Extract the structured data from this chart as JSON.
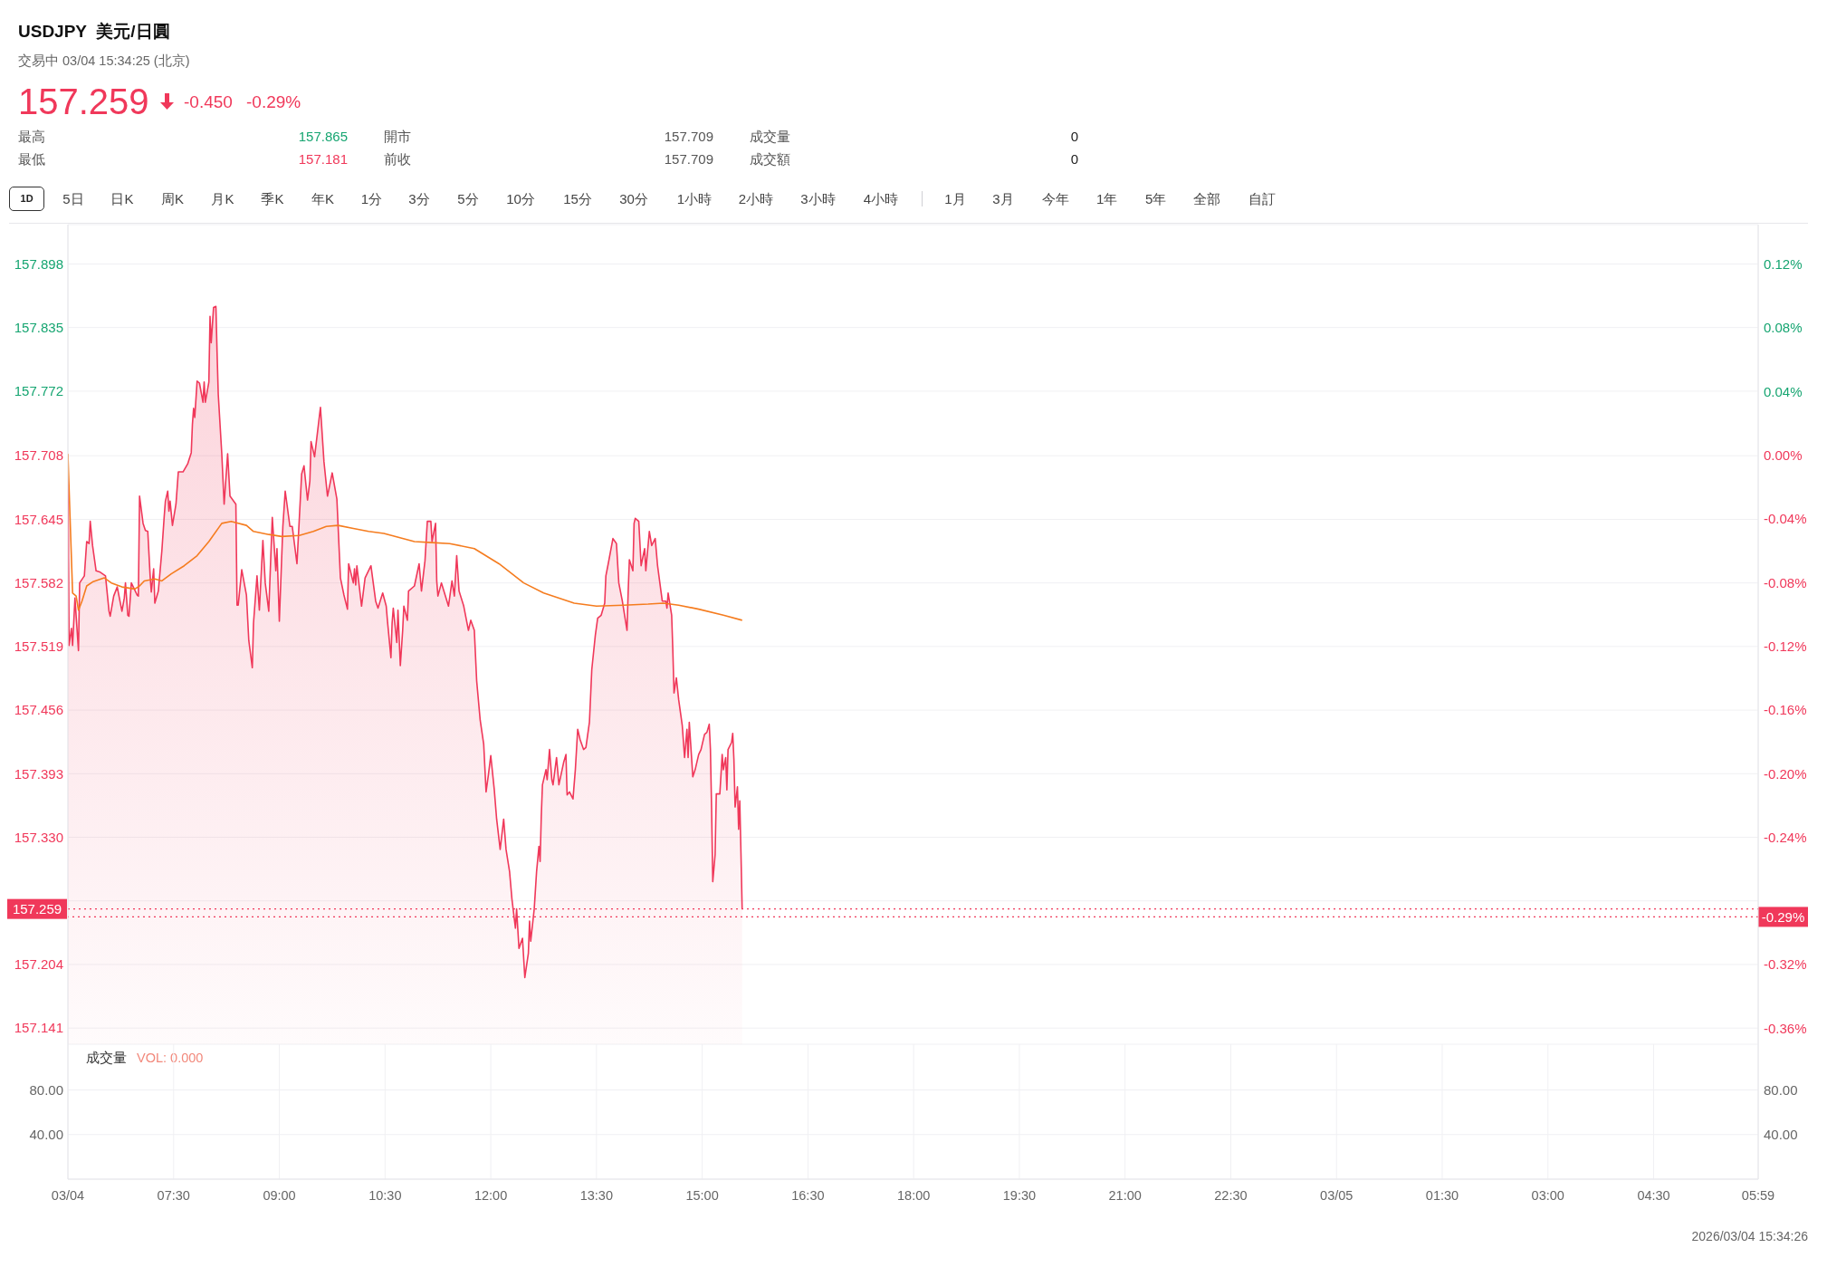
{
  "chart_data": [
    {
      "type": "area",
      "title": "USDJPY  美元/日圓",
      "subtitle": "交易中 03/04 15:34:25 (北京)",
      "annotations": [
        "157.259",
        "-0.450",
        "-0.29%",
        "最高",
        "157.865",
        "開市",
        "157.709",
        "成交量",
        "0",
        "最低",
        "157.181",
        "前收",
        "157.709",
        "成交額",
        "0",
        "1D",
        "5日",
        "日K",
        "周K",
        "月K",
        "季K",
        "年K",
        "1分",
        "3分",
        "5分",
        "10分",
        "15分",
        "30分",
        "1小時",
        "2小時",
        "3小時",
        "4小時",
        "1月",
        "3月",
        "今年",
        "1年",
        "5年",
        "全部",
        "自訂"
      ],
      "xlim": [
        "2026-03-04T06:00",
        "2026-03-05T05:59"
      ],
      "xticks": [
        {
          "value": "2026-03-04T06:00",
          "label": null
        },
        {
          "value": "2026-03-04T07:30",
          "label": null
        },
        {
          "value": "2026-03-04T09:00",
          "label": null
        },
        {
          "value": "2026-03-04T10:30",
          "label": null
        },
        {
          "value": "2026-03-04T12:00",
          "label": null
        },
        {
          "value": "2026-03-04T13:30",
          "label": null
        },
        {
          "value": "2026-03-04T15:00",
          "label": null
        },
        {
          "value": "2026-03-04T16:30",
          "label": null
        },
        {
          "value": "2026-03-04T18:00",
          "label": null
        },
        {
          "value": "2026-03-04T19:30",
          "label": null
        },
        {
          "value": "2026-03-04T21:00",
          "label": null
        },
        {
          "value": "2026-03-04T22:30",
          "label": null
        },
        {
          "value": "2026-03-05T00:00",
          "label": null
        },
        {
          "value": "2026-03-05T01:30",
          "label": null
        },
        {
          "value": "2026-03-05T03:00",
          "label": null
        },
        {
          "value": "2026-03-05T04:30",
          "label": null
        },
        {
          "value": "2026-03-05T05:59",
          "label": null
        }
      ],
      "ylim": [
        157.125,
        157.937
      ],
      "yticks": [
        {
          "value": 157.898,
          "label": "157.898"
        },
        {
          "value": 157.835,
          "label": "157.835"
        },
        {
          "value": 157.772,
          "label": "157.772"
        },
        {
          "value": 157.708,
          "label": "157.708"
        },
        {
          "value": 157.645,
          "label": "157.645"
        },
        {
          "value": 157.582,
          "label": "157.582"
        },
        {
          "value": 157.519,
          "label": "157.519"
        },
        {
          "value": 157.456,
          "label": "157.456"
        },
        {
          "value": 157.393,
          "label": "157.393"
        },
        {
          "value": 157.33,
          "label": "157.330"
        },
        {
          "value": 157.267,
          "label": null
        },
        {
          "value": 157.204,
          "label": "157.204"
        },
        {
          "value": 157.141,
          "label": "157.141"
        }
      ],
      "y2lim": [
        -0.37,
        0.145
      ],
      "y2ticks": [
        {
          "value": 0.12,
          "label": "0.12%"
        },
        {
          "value": 0.08,
          "label": "0.08%"
        },
        {
          "value": 0.04,
          "label": "0.04%"
        },
        {
          "value": 0,
          "label": "0.00%"
        },
        {
          "value": -0.04,
          "label": "-0.04%"
        },
        {
          "value": -0.08,
          "label": "-0.08%"
        },
        {
          "value": -0.12,
          "label": "-0.12%"
        },
        {
          "value": -0.16,
          "label": "-0.16%"
        },
        {
          "value": -0.2,
          "label": "-0.20%"
        },
        {
          "value": -0.24,
          "label": "-0.24%"
        },
        {
          "value": -0.28,
          "label": null
        },
        {
          "value": -0.32,
          "label": "-0.32%"
        },
        {
          "value": -0.36,
          "label": "-0.36%"
        }
      ],
      "tick_labels": "y",
      "grid": true,
      "ref_lines": [
        {
          "axis": "y",
          "value": 157.259,
          "label": "157.259",
          "color": "#f0385a",
          "line_style": "dotted"
        },
        {
          "axis": "y2",
          "value": -0.29,
          "label": "-0.29%",
          "color": "#f0385a",
          "line_style": "dotted"
        }
      ],
      "series": [
        {
          "color": "#f0385a",
          "x": [
            "2026-03-04T06:00",
            "2026-03-04T06:01",
            "2026-03-04T06:03",
            "2026-03-04T06:04",
            "2026-03-04T06:06",
            "2026-03-04T06:09",
            "2026-03-04T06:10",
            "2026-03-04T06:14",
            "2026-03-04T06:16",
            "2026-03-04T06:18",
            "2026-03-04T06:19",
            "2026-03-04T06:21",
            "2026-03-04T06:24",
            "2026-03-04T06:27",
            "2026-03-04T06:32",
            "2026-03-04T06:35",
            "2026-03-04T06:36",
            "2026-03-04T06:39",
            "2026-03-04T06:42",
            "2026-03-04T06:46",
            "2026-03-04T06:48",
            "2026-03-04T06:49",
            "2026-03-04T06:51",
            "2026-03-04T06:52",
            "2026-03-04T06:54",
            "2026-03-04T06:59",
            "2026-03-04T07:00",
            "2026-03-04T07:01",
            "2026-03-04T07:04",
            "2026-03-04T07:06",
            "2026-03-04T07:08",
            "2026-03-04T07:10",
            "2026-03-04T07:11",
            "2026-03-04T07:13",
            "2026-03-04T07:14",
            "2026-03-04T07:17",
            "2026-03-04T07:20",
            "2026-03-04T07:22",
            "2026-03-04T07:23",
            "2026-03-04T07:25",
            "2026-03-04T07:26",
            "2026-03-04T07:27",
            "2026-03-04T07:29",
            "2026-03-04T07:32",
            "2026-03-04T07:34",
            "2026-03-04T07:38",
            "2026-03-04T07:42",
            "2026-03-04T07:45",
            "2026-03-04T07:46",
            "2026-03-04T07:47",
            "2026-03-04T07:48",
            "2026-03-04T07:50",
            "2026-03-04T07:52",
            "2026-03-04T07:55",
            "2026-03-04T07:56",
            "2026-03-04T07:57",
            "2026-03-04T08:00",
            "2026-03-04T08:01",
            "2026-03-04T08:02",
            "2026-03-04T08:04",
            "2026-03-04T08:06",
            "2026-03-04T08:07",
            "2026-03-04T08:08",
            "2026-03-04T08:11",
            "2026-03-04T08:13",
            "2026-03-04T08:16",
            "2026-03-04T08:18",
            "2026-03-04T08:23",
            "2026-03-04T08:24",
            "2026-03-04T08:25",
            "2026-03-04T08:28",
            "2026-03-04T08:32",
            "2026-03-04T08:34",
            "2026-03-04T08:37",
            "2026-03-04T08:38",
            "2026-03-04T08:41",
            "2026-03-04T08:43",
            "2026-03-04T08:46",
            "2026-03-04T08:48",
            "2026-03-04T08:51",
            "2026-03-04T08:54",
            "2026-03-04T08:57",
            "2026-03-04T08:58",
            "2026-03-04T09:00",
            "2026-03-04T09:03",
            "2026-03-04T09:05",
            "2026-03-04T09:09",
            "2026-03-04T09:11",
            "2026-03-04T09:15",
            "2026-03-04T09:19",
            "2026-03-04T09:21",
            "2026-03-04T09:24",
            "2026-03-04T09:26",
            "2026-03-04T09:27",
            "2026-03-04T09:30",
            "2026-03-04T09:35",
            "2026-03-04T09:38",
            "2026-03-04T09:41",
            "2026-03-04T09:45",
            "2026-03-04T09:49",
            "2026-03-04T09:52",
            "2026-03-04T09:55",
            "2026-03-04T09:58",
            "2026-03-04T09:59",
            "2026-03-04T10:03",
            "2026-03-04T10:04",
            "2026-03-04T10:05",
            "2026-03-04T10:06",
            "2026-03-04T10:10",
            "2026-03-04T10:13",
            "2026-03-04T10:18",
            "2026-03-04T10:22",
            "2026-03-04T10:24",
            "2026-03-04T10:28",
            "2026-03-04T10:31",
            "2026-03-04T10:32",
            "2026-03-04T10:35",
            "2026-03-04T10:36",
            "2026-03-04T10:37",
            "2026-03-04T10:40",
            "2026-03-04T10:41",
            "2026-03-04T10:43",
            "2026-03-04T10:45",
            "2026-03-04T10:46",
            "2026-03-04T10:49",
            "2026-03-04T10:50",
            "2026-03-04T10:55",
            "2026-03-04T10:59",
            "2026-03-04T11:01",
            "2026-03-04T11:04",
            "2026-03-04T11:06",
            "2026-03-04T11:09",
            "2026-03-04T11:10",
            "2026-03-04T11:13",
            "2026-03-04T11:14",
            "2026-03-04T11:15",
            "2026-03-04T11:18",
            "2026-03-04T11:24",
            "2026-03-04T11:27",
            "2026-03-04T11:29",
            "2026-03-04T11:31",
            "2026-03-04T11:33",
            "2026-03-04T11:37",
            "2026-03-04T11:41",
            "2026-03-04T11:43",
            "2026-03-04T11:46",
            "2026-03-04T11:48",
            "2026-03-04T11:51",
            "2026-03-04T11:54",
            "2026-03-04T11:56",
            "2026-03-04T11:58",
            "2026-03-04T12:00",
            "2026-03-04T12:03",
            "2026-03-04T12:05",
            "2026-03-04T12:08",
            "2026-03-04T12:11",
            "2026-03-04T12:13",
            "2026-03-04T12:16",
            "2026-03-04T12:18",
            "2026-03-04T12:21",
            "2026-03-04T12:22",
            "2026-03-04T12:24",
            "2026-03-04T12:27",
            "2026-03-04T12:29",
            "2026-03-04T12:32",
            "2026-03-04T12:33",
            "2026-03-04T12:34",
            "2026-03-04T12:37",
            "2026-03-04T12:39",
            "2026-03-04T12:41",
            "2026-03-04T12:42",
            "2026-03-04T12:43",
            "2026-03-04T12:44",
            "2026-03-04T12:47",
            "2026-03-04T12:48",
            "2026-03-04T12:50",
            "2026-03-04T12:52",
            "2026-03-04T12:53",
            "2026-03-04T12:56",
            "2026-03-04T12:58",
            "2026-03-04T13:02",
            "2026-03-04T13:04",
            "2026-03-04T13:05",
            "2026-03-04T13:07",
            "2026-03-04T13:10",
            "2026-03-04T13:12",
            "2026-03-04T13:14",
            "2026-03-04T13:16",
            "2026-03-04T13:19",
            "2026-03-04T13:21",
            "2026-03-04T13:24",
            "2026-03-04T13:26",
            "2026-03-04T13:29",
            "2026-03-04T13:31",
            "2026-03-04T13:34",
            "2026-03-04T13:37",
            "2026-03-04T13:38",
            "2026-03-04T13:40",
            "2026-03-04T13:44",
            "2026-03-04T13:47",
            "2026-03-04T13:49",
            "2026-03-04T13:52",
            "2026-03-04T13:56",
            "2026-03-04T13:57",
            "2026-03-04T13:58",
            "2026-03-04T14:01",
            "2026-03-04T14:02",
            "2026-03-04T14:03",
            "2026-03-04T14:06",
            "2026-03-04T14:08",
            "2026-03-04T14:11",
            "2026-03-04T14:12",
            "2026-03-04T14:15",
            "2026-03-04T14:17",
            "2026-03-04T14:20",
            "2026-03-04T14:22",
            "2026-03-04T14:26",
            "2026-03-04T14:29",
            "2026-03-04T14:30",
            "2026-03-04T14:31",
            "2026-03-04T14:34",
            "2026-03-04T14:35",
            "2026-03-04T14:36",
            "2026-03-04T14:38",
            "2026-03-04T14:40",
            "2026-03-04T14:43",
            "2026-03-04T14:45",
            "2026-03-04T14:47",
            "2026-03-04T14:48",
            "2026-03-04T14:49",
            "2026-03-04T14:52",
            "2026-03-04T14:54",
            "2026-03-04T14:57",
            "2026-03-04T14:59",
            "2026-03-04T15:02",
            "2026-03-04T15:04",
            "2026-03-04T15:06",
            "2026-03-04T15:07",
            "2026-03-04T15:08",
            "2026-03-04T15:09",
            "2026-03-04T15:11",
            "2026-03-04T15:12",
            "2026-03-04T15:15",
            "2026-03-04T15:16",
            "2026-03-04T15:17",
            "2026-03-04T15:18",
            "2026-03-04T15:20",
            "2026-03-04T15:21",
            "2026-03-04T15:22",
            "2026-03-04T15:25",
            "2026-03-04T15:26",
            "2026-03-04T15:27",
            "2026-03-04T15:28",
            "2026-03-04T15:30",
            "2026-03-04T15:31",
            "2026-03-04T15:32",
            "2026-03-04T15:33",
            "2026-03-04T15:34"
          ],
          "values": [
            157.709,
            157.52,
            157.537,
            157.52,
            157.567,
            157.515,
            157.582,
            157.589,
            157.623,
            157.621,
            157.643,
            157.619,
            157.594,
            157.593,
            157.589,
            157.554,
            157.549,
            157.569,
            157.578,
            157.554,
            157.567,
            157.582,
            157.55,
            157.549,
            157.582,
            157.57,
            157.569,
            157.668,
            157.641,
            157.634,
            157.633,
            157.589,
            157.573,
            157.596,
            157.562,
            157.574,
            157.614,
            157.648,
            157.663,
            157.673,
            157.653,
            157.663,
            157.639,
            157.66,
            157.692,
            157.692,
            157.7,
            157.711,
            157.739,
            157.755,
            157.746,
            157.782,
            157.78,
            157.761,
            157.781,
            157.761,
            157.781,
            157.846,
            157.82,
            157.855,
            157.856,
            157.81,
            157.769,
            157.71,
            157.66,
            157.71,
            157.668,
            157.66,
            157.56,
            157.56,
            157.595,
            157.57,
            157.525,
            157.498,
            157.542,
            157.589,
            157.555,
            157.624,
            157.582,
            157.554,
            157.647,
            157.594,
            157.616,
            157.544,
            157.638,
            157.673,
            157.638,
            157.638,
            157.601,
            157.69,
            157.698,
            157.664,
            157.683,
            157.722,
            157.707,
            157.756,
            157.702,
            157.668,
            157.691,
            157.665,
            157.587,
            157.57,
            157.556,
            157.601,
            157.582,
            157.596,
            157.58,
            157.599,
            157.559,
            157.587,
            157.599,
            157.564,
            157.557,
            157.572,
            157.559,
            157.545,
            157.508,
            157.542,
            157.557,
            157.523,
            157.555,
            157.5,
            157.535,
            157.559,
            157.545,
            157.574,
            157.579,
            157.601,
            157.574,
            157.604,
            157.643,
            157.643,
            157.623,
            157.641,
            157.584,
            157.569,
            157.582,
            157.559,
            157.584,
            157.569,
            157.609,
            157.574,
            157.559,
            157.535,
            157.545,
            157.535,
            157.485,
            157.446,
            157.422,
            157.375,
            157.392,
            157.411,
            157.377,
            157.348,
            157.318,
            157.348,
            157.318,
            157.296,
            157.269,
            157.24,
            157.259,
            157.22,
            157.23,
            157.191,
            157.215,
            157.247,
            157.227,
            157.259,
            157.296,
            157.321,
            157.306,
            157.351,
            157.382,
            157.397,
            157.387,
            157.417,
            157.387,
            157.382,
            157.409,
            157.382,
            157.404,
            157.412,
            157.372,
            157.375,
            157.368,
            157.397,
            157.437,
            157.427,
            157.417,
            157.419,
            157.444,
            157.496,
            157.53,
            157.547,
            157.55,
            157.562,
            157.589,
            157.601,
            157.626,
            157.621,
            157.582,
            157.564,
            157.535,
            157.574,
            157.605,
            157.594,
            157.641,
            157.646,
            157.643,
            157.599,
            157.616,
            157.594,
            157.633,
            157.619,
            157.626,
            157.599,
            157.564,
            157.564,
            157.557,
            157.572,
            157.55,
            157.515,
            157.473,
            157.488,
            157.466,
            157.441,
            157.409,
            157.437,
            157.409,
            157.444,
            157.39,
            157.397,
            157.412,
            157.417,
            157.432,
            157.434,
            157.442,
            157.417,
            157.358,
            157.286,
            157.313,
            157.373,
            157.373,
            157.392,
            157.412,
            157.397,
            157.409,
            157.377,
            157.417,
            157.424,
            157.433,
            157.407,
            157.36,
            157.38,
            157.338,
            157.366,
            157.314,
            157.259
          ]
        },
        {
          "type": "line",
          "color": "#f57c1f",
          "x": [
            "2026-03-04T06:00",
            "2026-03-04T06:04",
            "2026-03-04T06:07",
            "2026-03-04T06:09",
            "2026-03-04T06:12",
            "2026-03-04T06:16",
            "2026-03-04T06:21",
            "2026-03-04T06:31",
            "2026-03-04T06:37",
            "2026-03-04T06:46",
            "2026-03-04T06:57",
            "2026-03-04T07:01",
            "2026-03-04T07:05",
            "2026-03-04T07:14",
            "2026-03-04T07:20",
            "2026-03-04T07:28",
            "2026-03-04T07:39",
            "2026-03-04T07:50",
            "2026-03-04T08:00",
            "2026-03-04T08:11",
            "2026-03-04T08:19",
            "2026-03-04T08:32",
            "2026-03-04T08:38",
            "2026-03-04T08:51",
            "2026-03-04T09:02",
            "2026-03-04T09:17",
            "2026-03-04T09:29",
            "2026-03-04T09:40",
            "2026-03-04T09:50",
            "2026-03-04T10:03",
            "2026-03-04T10:16",
            "2026-03-04T10:29",
            "2026-03-04T10:42",
            "2026-03-04T10:55",
            "2026-03-04T11:10",
            "2026-03-04T11:25",
            "2026-03-04T11:46",
            "2026-03-04T12:07",
            "2026-03-04T12:28",
            "2026-03-04T12:45",
            "2026-03-04T13:11",
            "2026-03-04T13:30",
            "2026-03-04T13:53",
            "2026-03-04T14:14",
            "2026-03-04T14:27",
            "2026-03-04T14:40",
            "2026-03-04T14:57",
            "2026-03-04T15:18",
            "2026-03-04T15:34"
          ],
          "values": [
            157.71,
            157.572,
            157.569,
            157.555,
            157.564,
            157.579,
            157.583,
            157.587,
            157.582,
            157.578,
            157.576,
            157.579,
            157.584,
            157.586,
            157.584,
            157.591,
            157.599,
            157.609,
            157.623,
            157.641,
            157.643,
            157.639,
            157.633,
            157.63,
            157.628,
            157.629,
            157.633,
            157.638,
            157.639,
            157.636,
            157.633,
            157.631,
            157.627,
            157.623,
            157.622,
            157.621,
            157.616,
            157.601,
            157.582,
            157.572,
            157.562,
            157.559,
            157.56,
            157.561,
            157.562,
            157.56,
            157.556,
            157.55,
            157.545
          ]
        }
      ]
    },
    {
      "type": "bar",
      "title": "成交量",
      "annotations": [
        "VOL: 0.000",
        "2026/03/04 15:34:26"
      ],
      "x": [
        "2026-03-04T15:34"
      ],
      "values": [
        0
      ],
      "xlim": [
        "2026-03-04T06:00",
        "2026-03-05T05:59"
      ],
      "xticks": [
        {
          "value": "2026-03-04T06:00",
          "label": "03/04"
        },
        {
          "value": "2026-03-04T07:30",
          "label": "07:30"
        },
        {
          "value": "2026-03-04T09:00",
          "label": "09:00"
        },
        {
          "value": "2026-03-04T10:30",
          "label": "10:30"
        },
        {
          "value": "2026-03-04T12:00",
          "label": "12:00"
        },
        {
          "value": "2026-03-04T13:30",
          "label": "13:30"
        },
        {
          "value": "2026-03-04T15:00",
          "label": "15:00"
        },
        {
          "value": "2026-03-04T16:30",
          "label": "16:30"
        },
        {
          "value": "2026-03-04T18:00",
          "label": "18:00"
        },
        {
          "value": "2026-03-04T19:30",
          "label": "19:30"
        },
        {
          "value": "2026-03-04T21:00",
          "label": "21:00"
        },
        {
          "value": "2026-03-04T22:30",
          "label": "22:30"
        },
        {
          "value": "2026-03-05T00:00",
          "label": "03/05"
        },
        {
          "value": "2026-03-05T01:30",
          "label": "01:30"
        },
        {
          "value": "2026-03-05T03:00",
          "label": "03:00"
        },
        {
          "value": "2026-03-05T04:30",
          "label": "04:30"
        },
        {
          "value": "2026-03-05T05:59",
          "label": "05:59"
        }
      ],
      "ylim": [
        0,
        121
      ],
      "yticks": [
        {
          "value": 40,
          "label": "40.00"
        },
        {
          "value": 80,
          "label": "80.00"
        }
      ],
      "y2lim": [
        0,
        121
      ],
      "y2ticks": [
        {
          "value": 40,
          "label": "40.00"
        },
        {
          "value": 80,
          "label": "80.00"
        }
      ],
      "grid": true
    }
  ]
}
